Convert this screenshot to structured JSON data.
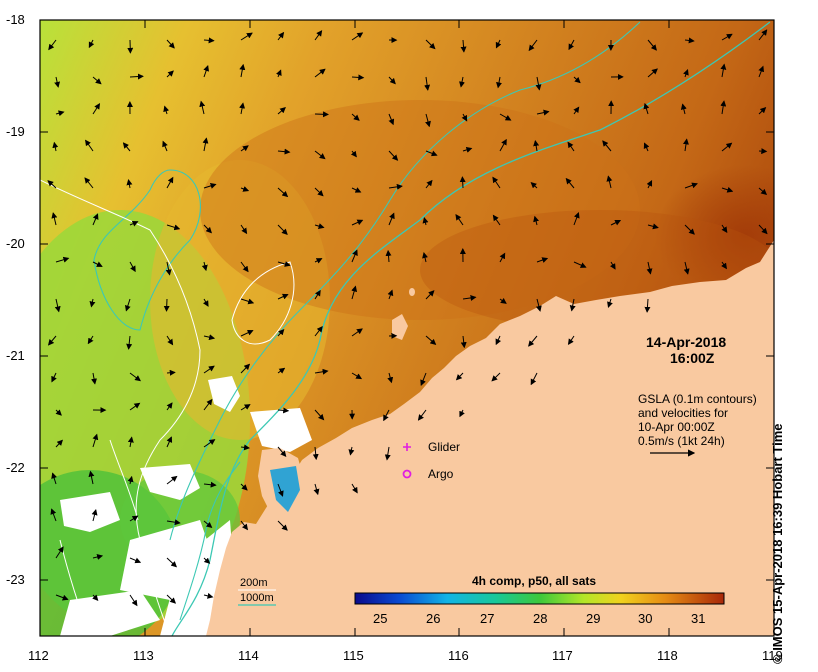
{
  "map": {
    "date": "14-Apr-2018",
    "time": "16:00Z",
    "legend_lines": [
      "GSLA (0.1m contours)",
      "and velocities for",
      "10-Apr 00:00Z",
      "0.5m/s (1kt 24h)"
    ],
    "markers": {
      "glider": "Glider",
      "argo": "Argo"
    },
    "depth_legend": {
      "label_200": "200m",
      "label_1000": "1000m"
    },
    "colorbar": {
      "title": "4h comp, p50, all sats",
      "ticks": [
        "25",
        "26",
        "27",
        "28",
        "29",
        "30",
        "31"
      ]
    },
    "credit": "© IMOS 15-Apr-2018 16:39 Hobart Time",
    "lat_ticks": [
      "-18",
      "-19",
      "-20",
      "-21",
      "-22",
      "-23"
    ],
    "lon_ticks": [
      "112",
      "113",
      "114",
      "115",
      "116",
      "117",
      "118",
      "119"
    ],
    "colors": {
      "land": "#f9c9a0",
      "coast_warm": "#b44a0a",
      "offshore": "#dc8a1c",
      "inshore_green": "#8bd23c",
      "contour_1000": "#3cc8b4",
      "contour_200": "#ffffff",
      "marker": "#e01ee0"
    }
  }
}
